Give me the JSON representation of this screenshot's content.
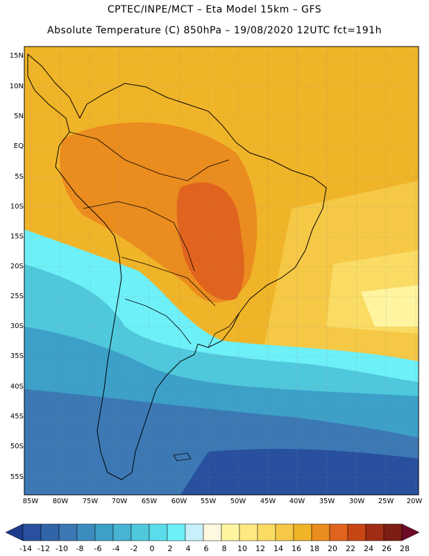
{
  "header": {
    "line1": "CPTEC/INPE/MCT –  Eta Model 15km – GFS",
    "line2": "Absolute Temperature (C) 850hPa – 19/08/2020 12UTC fct=191h"
  },
  "map": {
    "lat_labels": [
      "15N",
      "10N",
      "5N",
      "EQ",
      "5S",
      "10S",
      "15S",
      "20S",
      "25S",
      "30S",
      "35S",
      "40S",
      "45S",
      "50S",
      "55S"
    ],
    "lon_labels": [
      "85W",
      "80W",
      "75W",
      "70W",
      "65W",
      "60W",
      "55W",
      "50W",
      "45W",
      "40W",
      "35W",
      "30W",
      "25W",
      "20W"
    ]
  },
  "colorbar": {
    "labels": [
      "-14",
      "-12",
      "-10",
      "-8",
      "-6",
      "-4",
      "-2",
      "0",
      "2",
      "4",
      "6",
      "8",
      "10",
      "12",
      "14",
      "16",
      "18",
      "20",
      "22",
      "24",
      "26",
      "28"
    ],
    "colors": [
      "#1e3c8c",
      "#28509e",
      "#3264a8",
      "#3c78b4",
      "#3c8cc0",
      "#3ca0c8",
      "#46b4d2",
      "#50c8dc",
      "#5adcea",
      "#6ef0f8",
      "#c8f0fa",
      "#fff8e0",
      "#fff5a0",
      "#ffe882",
      "#fadc64",
      "#f5c846",
      "#f0b428",
      "#eb8c1e",
      "#e1641e",
      "#c84614",
      "#a02d14",
      "#7d1e14",
      "#6e0a28"
    ]
  }
}
